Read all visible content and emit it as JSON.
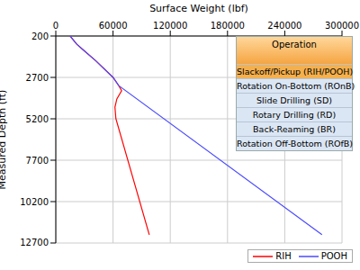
{
  "chart_data": {
    "type": "line",
    "x_label": "Surface Weight (lbf)",
    "y_label": "Measured Depth (ft)",
    "xlim": [
      0,
      300000
    ],
    "xticks": [
      0,
      60000,
      120000,
      180000,
      240000,
      300000
    ],
    "ylim": [
      200,
      12700
    ],
    "yticks": [
      200,
      2700,
      5200,
      7700,
      10200,
      12700
    ],
    "grid": true,
    "legend": "lower right",
    "annotations": {
      "title": "Operation",
      "items": [
        "Slackoff/Pickup (RIH/POOH)",
        "Rotation On-Bottom (ROnB)",
        "Slide Drilling (SD)",
        "Rotary Drilling (RD)",
        "Back-Reaming (BR)",
        "Rotation Off-Bottom (ROfB)"
      ]
    },
    "series": [
      {
        "name": "RIH",
        "color": "#ff0000",
        "x": [
          15000,
          22000,
          28000,
          42000,
          60000,
          66000,
          69000,
          64000,
          62000,
          63000,
          98000
        ],
        "values": [
          200,
          700,
          1000,
          1700,
          2700,
          3200,
          3500,
          4000,
          4500,
          5200,
          12200
        ]
      },
      {
        "name": "POOH",
        "color": "#4b4bff",
        "x": [
          15000,
          22000,
          28000,
          42000,
          60000,
          66000,
          279000
        ],
        "values": [
          200,
          700,
          1000,
          1700,
          2700,
          3200,
          12200
        ]
      }
    ]
  }
}
